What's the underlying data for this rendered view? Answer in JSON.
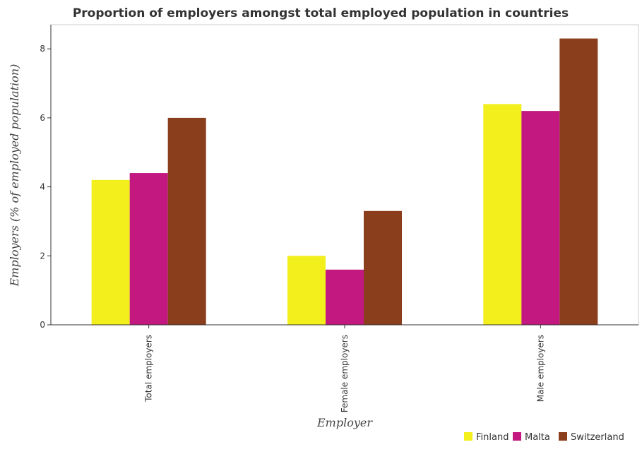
{
  "chart_data": {
    "type": "bar",
    "title": "Proportion of employers amongst total employed population in countries",
    "xlabel": "Employer",
    "ylabel": "Employers (% of employed population)",
    "categories": [
      "Total employers",
      "Female employers",
      "Male employers"
    ],
    "series": [
      {
        "name": "Finland",
        "color": "#f2ef1d",
        "values": [
          4.2,
          2.0,
          6.4
        ]
      },
      {
        "name": "Malta",
        "color": "#c2187f",
        "values": [
          4.4,
          1.6,
          6.2
        ]
      },
      {
        "name": "Switzerland",
        "color": "#8b3e1c",
        "values": [
          6.0,
          3.3,
          8.3
        ]
      }
    ],
    "yticks": [
      "0",
      "2",
      "4",
      "6",
      "8"
    ],
    "ylim": [
      0,
      8.7
    ],
    "grid": false,
    "legend_position": "bottom-right"
  }
}
